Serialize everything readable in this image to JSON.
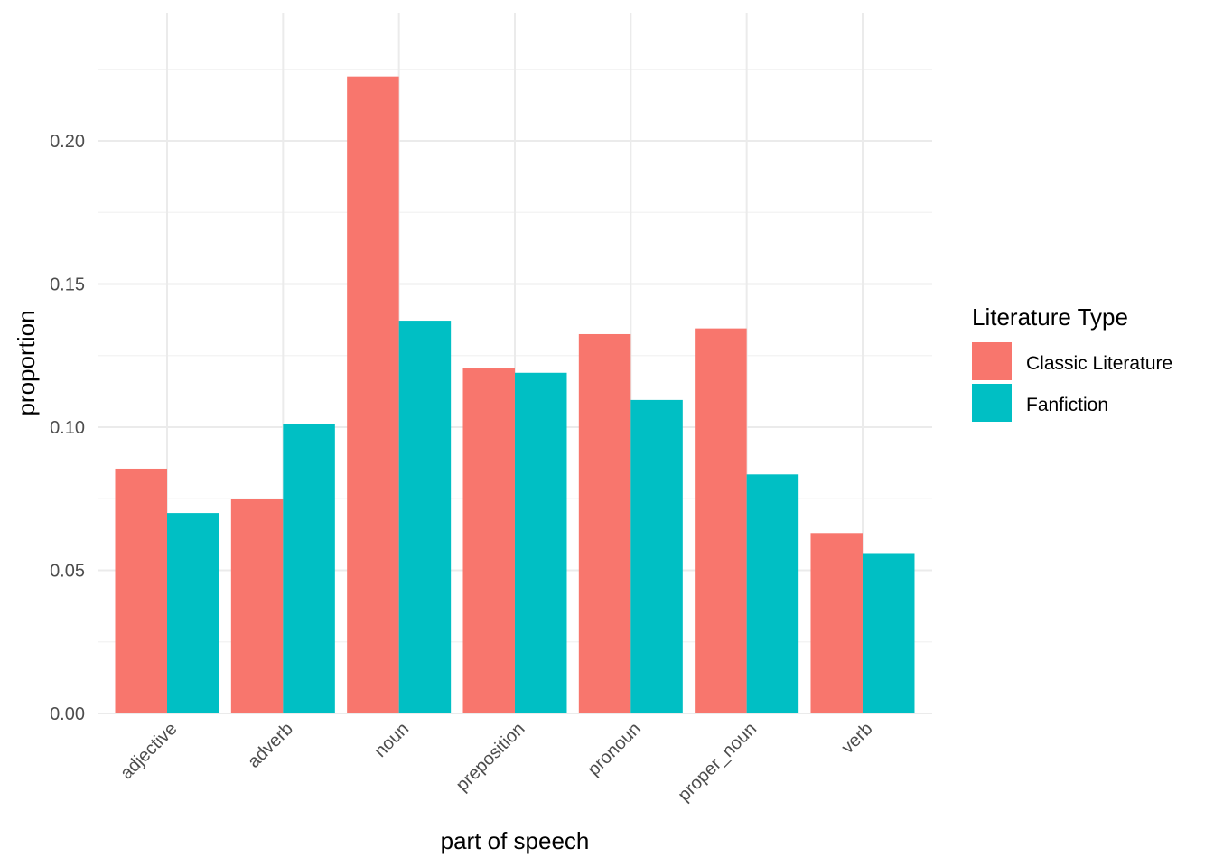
{
  "chart_data": {
    "type": "bar",
    "categories": [
      "adjective",
      "adverb",
      "noun",
      "preposition",
      "pronoun",
      "proper_noun",
      "verb"
    ],
    "series": [
      {
        "name": "Classic Literature",
        "color": "#F8766D",
        "values": [
          0.0855,
          0.075,
          0.2225,
          0.1205,
          0.1325,
          0.1345,
          0.063
        ]
      },
      {
        "name": "Fanfiction",
        "color": "#00BFC4",
        "values": [
          0.07,
          0.1012,
          0.1372,
          0.119,
          0.1095,
          0.0835,
          0.056
        ]
      }
    ],
    "xlabel": "part of speech",
    "ylabel": "proportion",
    "ylim": [
      0,
      0.225
    ],
    "yticks": [
      0.0,
      0.05,
      0.1,
      0.15,
      0.2
    ],
    "ytick_labels": [
      "0.00",
      "0.05",
      "0.10",
      "0.15",
      "0.20"
    ],
    "grid": true,
    "legend": {
      "title": "Literature Type",
      "placement": "right"
    }
  }
}
